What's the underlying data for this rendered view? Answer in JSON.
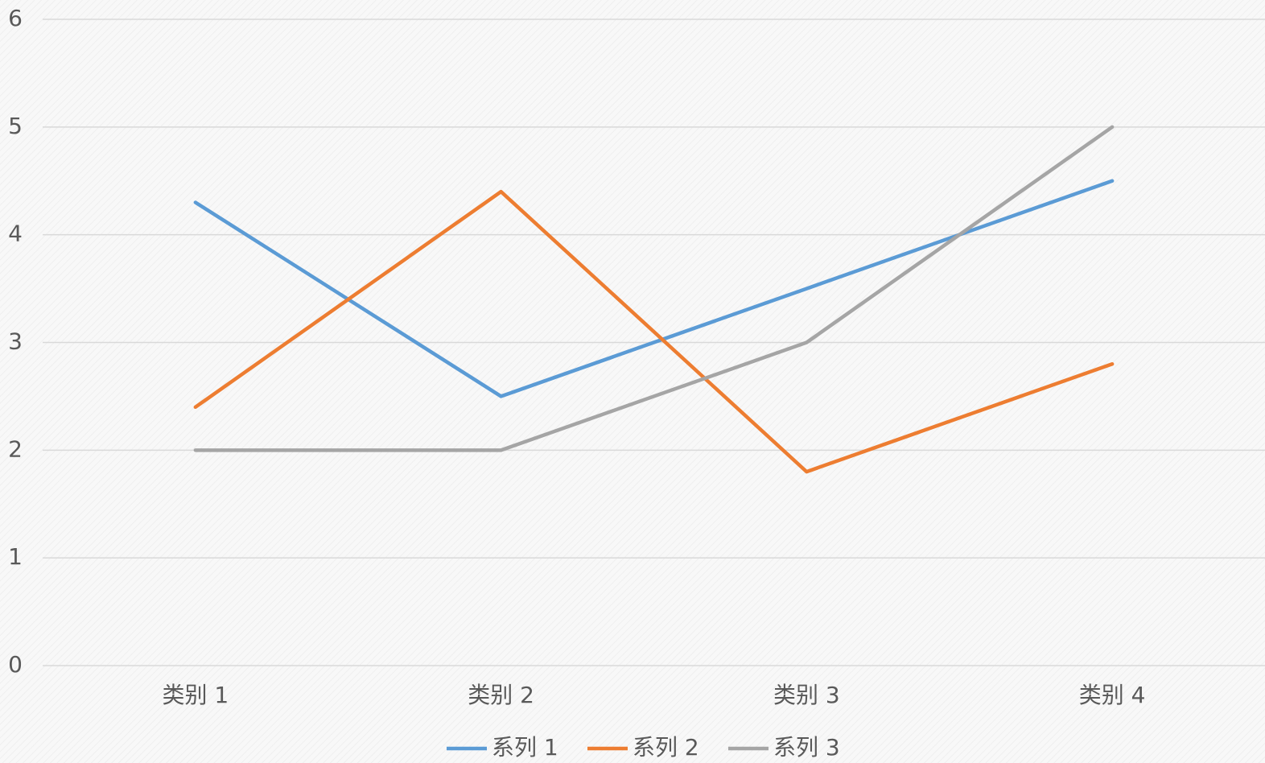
{
  "chart_data": {
    "type": "line",
    "categories": [
      "类别 1",
      "类别 2",
      "类别 3",
      "类别 4"
    ],
    "series": [
      {
        "name": "系列 1",
        "color": "#5b9bd5",
        "values": [
          4.3,
          2.5,
          3.5,
          4.5
        ]
      },
      {
        "name": "系列 2",
        "color": "#ed7d31",
        "values": [
          2.4,
          4.4,
          1.8,
          2.8
        ]
      },
      {
        "name": "系列 3",
        "color": "#a5a5a5",
        "values": [
          2,
          2,
          3,
          5
        ]
      }
    ],
    "ylim": [
      0,
      6
    ],
    "yticks": [
      0,
      1,
      2,
      3,
      4,
      5,
      6
    ],
    "grid": true,
    "legend": "bottom"
  }
}
